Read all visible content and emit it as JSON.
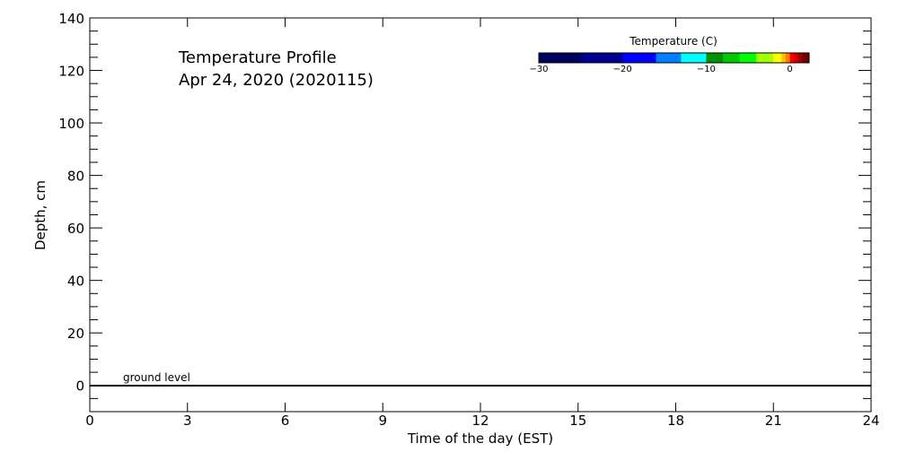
{
  "chart_data": {
    "type": "heatmap",
    "title": "Temperature Profile",
    "subtitle": "Apr 24, 2020 (2020115)",
    "xlabel": "Time of the day (EST)",
    "ylabel": "Depth, cm",
    "xlim": [
      0,
      24
    ],
    "ylim": [
      -10,
      140
    ],
    "xticks": [
      0,
      3,
      6,
      9,
      12,
      15,
      18,
      21,
      24
    ],
    "yticks": [
      0,
      20,
      40,
      60,
      80,
      100,
      120,
      140
    ],
    "grid": false,
    "annotations": [
      {
        "text": "ground level",
        "y": 0
      }
    ],
    "values": [],
    "colorbar": {
      "label": "Temperature (C)",
      "range": [
        -30,
        2.3
      ],
      "ticks": [
        -30,
        -20,
        -10,
        0
      ],
      "bins": [
        {
          "from": -30,
          "to": -25,
          "color": "#000060"
        },
        {
          "from": -25,
          "to": -20,
          "color": "#000090"
        },
        {
          "from": -20,
          "to": -16,
          "color": "#0000ff"
        },
        {
          "from": -16,
          "to": -13,
          "color": "#0080ff"
        },
        {
          "from": -13,
          "to": -10,
          "color": "#00ffff"
        },
        {
          "from": -10,
          "to": -8,
          "color": "#009000"
        },
        {
          "from": -8,
          "to": -6,
          "color": "#00c800"
        },
        {
          "from": -6,
          "to": -4,
          "color": "#00ff00"
        },
        {
          "from": -4,
          "to": -2,
          "color": "#a0ff00"
        },
        {
          "from": -2,
          "to": -1,
          "color": "#ffff00"
        },
        {
          "from": -1,
          "to": -0.5,
          "color": "#ffc000"
        },
        {
          "from": -0.5,
          "to": 0,
          "color": "#ff8000"
        },
        {
          "from": 0,
          "to": 0.5,
          "color": "#ff0000"
        },
        {
          "from": 0.5,
          "to": 1,
          "color": "#d00000"
        },
        {
          "from": 1,
          "to": 1.5,
          "color": "#a00000"
        },
        {
          "from": 1.5,
          "to": 2.3,
          "color": "#700000"
        }
      ]
    }
  }
}
